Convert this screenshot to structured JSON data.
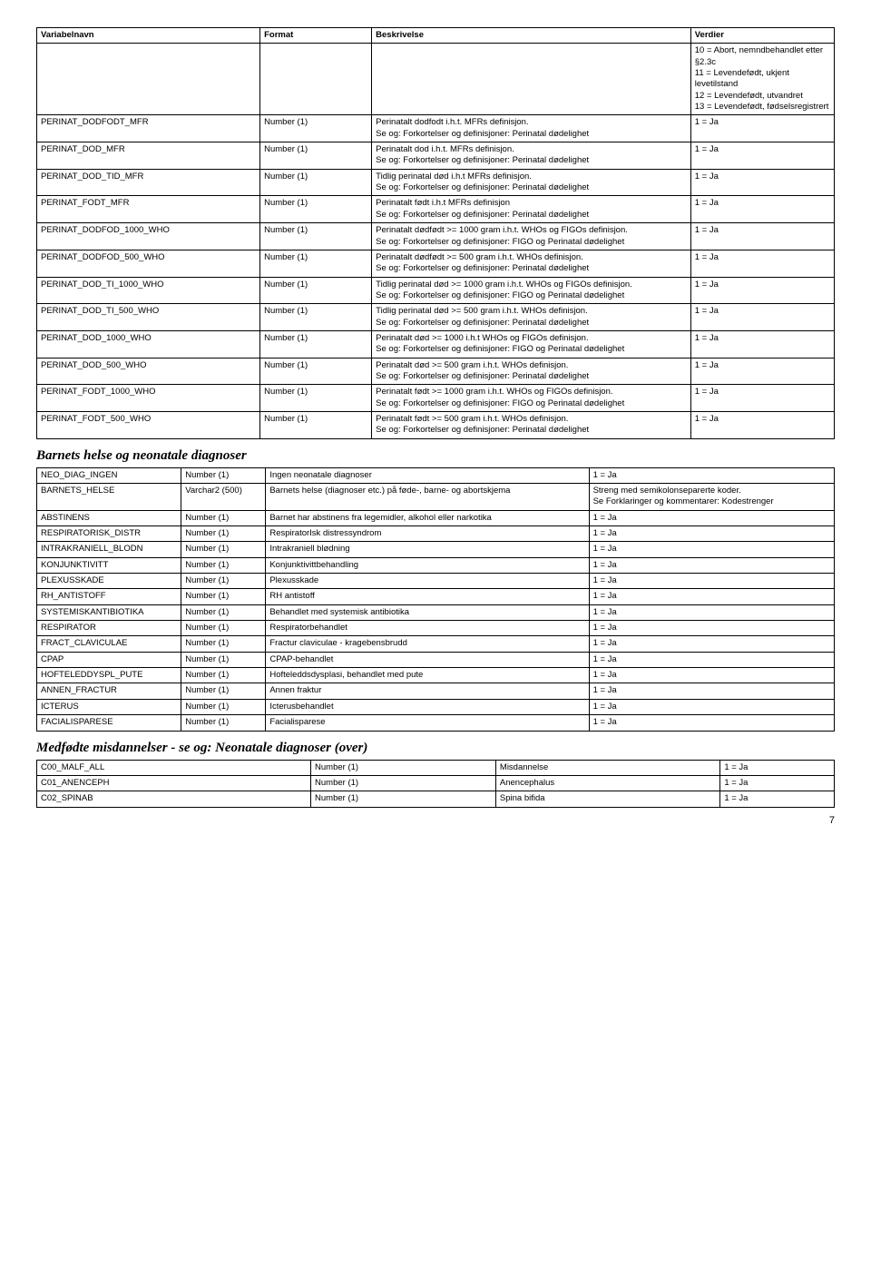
{
  "header": {
    "cols": [
      "Variabelnavn",
      "Format",
      "Beskrivelse",
      "Verdier"
    ]
  },
  "table1": {
    "rows": [
      [
        "",
        "",
        "",
        "10 = Abort, nemndbehandlet etter §2.3c\n11 = Levendefødt, ukjent levetilstand\n12 = Levendefødt, utvandret\n13 = Levendefødt, fødselsregistrert"
      ],
      [
        "PERINAT_DODFODT_MFR",
        "Number (1)",
        "Perinatalt dodfodt i.h.t. MFRs definisjon.\nSe og: Forkortelser og definisjoner: Perinatal dødelighet",
        "1 = Ja"
      ],
      [
        "PERINAT_DOD_MFR",
        "Number (1)",
        "Perinatalt dod i.h.t. MFRs definisjon.\nSe og: Forkortelser og definisjoner: Perinatal dødelighet",
        "1 = Ja"
      ],
      [
        "PERINAT_DOD_TID_MFR",
        "Number (1)",
        "Tidlig perinatal død i.h.t MFRs definisjon.\nSe og: Forkortelser og definisjoner: Perinatal dødelighet",
        "1 = Ja"
      ],
      [
        "PERINAT_FODT_MFR",
        "Number (1)",
        "Perinatalt født i.h.t MFRs definisjon\nSe og: Forkortelser og definisjoner: Perinatal dødelighet",
        "1 = Ja"
      ],
      [
        "PERINAT_DODFOD_1000_WHO",
        "Number (1)",
        "Perinatalt dødfødt >= 1000 gram i.h.t. WHOs og FIGOs definisjon.\nSe og: Forkortelser og definisjoner: FIGO og Perinatal dødelighet",
        "1 = Ja"
      ],
      [
        "PERINAT_DODFOD_500_WHO",
        "Number (1)",
        "Perinatalt dødfødt >= 500 gram i.h.t. WHOs definisjon.\nSe og: Forkortelser og definisjoner: Perinatal dødelighet",
        "1 = Ja"
      ],
      [
        "PERINAT_DOD_TI_1000_WHO",
        "Number (1)",
        "Tidlig perinatal død >= 1000 gram i.h.t. WHOs og FIGOs definisjon.\nSe og: Forkortelser og definisjoner: FIGO og Perinatal dødelighet",
        "1 = Ja"
      ],
      [
        "PERINAT_DOD_TI_500_WHO",
        "Number (1)",
        "Tidlig perinatal død >= 500 gram i.h.t. WHOs definisjon.\nSe og: Forkortelser og definisjoner: Perinatal dødelighet",
        "1 = Ja"
      ],
      [
        "PERINAT_DOD_1000_WHO",
        "Number (1)",
        "Perinatalt død >= 1000 i.h.t WHOs og FIGOs definisjon.\nSe og: Forkortelser og definisjoner: FIGO og Perinatal dødelighet",
        "1 = Ja"
      ],
      [
        "PERINAT_DOD_500_WHO",
        "Number (1)",
        "Perinatalt død >= 500 gram i.h.t. WHOs definisjon.\nSe og: Forkortelser og definisjoner: Perinatal dødelighet",
        "1 = Ja"
      ],
      [
        "PERINAT_FODT_1000_WHO",
        "Number (1)",
        "Perinatalt født >= 1000 gram i.h.t. WHOs og FIGOs definisjon.\nSe og: Forkortelser og definisjoner: FIGO og Perinatal dødelighet",
        "1 = Ja"
      ],
      [
        "PERINAT_FODT_500_WHO",
        "Number (1)",
        "Perinatalt født >= 500 gram i.h.t. WHOs definisjon.\nSe og: Forkortelser og definisjoner: Perinatal dødelighet",
        "1 = Ja"
      ]
    ]
  },
  "section2": {
    "title": "Barnets helse og neonatale diagnoser"
  },
  "table2": {
    "rows": [
      [
        "NEO_DIAG_INGEN",
        "Number (1)",
        "Ingen neonatale diagnoser",
        "1 = Ja"
      ],
      [
        "BARNETS_HELSE",
        "Varchar2 (500)",
        "Barnets helse (diagnoser etc.) på føde-, barne- og abortskjema",
        "Streng med semikolonseparerte koder.\nSe Forklaringer og kommentarer: Kodestrenger"
      ],
      [
        "ABSTINENS",
        "Number (1)",
        "Barnet har abstinens fra legemidler, alkohol eller narkotika",
        "1 = Ja"
      ],
      [
        "RESPIRATORISK_DISTR",
        "Number (1)",
        "RespiratorIsk distressyndrom",
        "1 = Ja"
      ],
      [
        "INTRAKRANIELL_BLODN",
        "Number (1)",
        "Intrakraniell blødning",
        "1 = Ja"
      ],
      [
        "KONJUNKTIVITT",
        "Number (1)",
        "Konjunktivittbehandling",
        "1 = Ja"
      ],
      [
        "PLEXUSSKADE",
        "Number (1)",
        "Plexusskade",
        "1 = Ja"
      ],
      [
        "RH_ANTISTOFF",
        "Number (1)",
        "RH antistoff",
        "1 = Ja"
      ],
      [
        "SYSTEMISKANTIBIOTIKA",
        "Number (1)",
        "Behandlet med systemisk antibiotika",
        "1 = Ja"
      ],
      [
        "RESPIRATOR",
        "Number (1)",
        "Respiratorbehandlet",
        "1 = Ja"
      ],
      [
        "FRACT_CLAVICULAE",
        "Number (1)",
        "Fractur claviculae - kragebensbrudd",
        "1 = Ja"
      ],
      [
        "CPAP",
        "Number (1)",
        "CPAP-behandlet",
        "1 = Ja"
      ],
      [
        "HOFTELEDDYSPL_PUTE",
        "Number (1)",
        "Hofteleddsdysplasi, behandlet med pute",
        "1 = Ja"
      ],
      [
        "ANNEN_FRACTUR",
        "Number (1)",
        "Annen fraktur",
        "1 = Ja"
      ],
      [
        "ICTERUS",
        "Number (1)",
        "Icterusbehandlet",
        "1 = Ja"
      ],
      [
        "FACIALISPARESE",
        "Number (1)",
        "Facialisparese",
        "1 = Ja"
      ]
    ]
  },
  "section3": {
    "title": "Medfødte misdannelser  -  se og:  Neonatale diagnoser (over)"
  },
  "table3": {
    "rows": [
      [
        "C00_MALF_ALL",
        "Number (1)",
        "Misdannelse",
        "1 = Ja"
      ],
      [
        "C01_ANENCEPH",
        "Number (1)",
        "Anencephalus",
        "1 = Ja"
      ],
      [
        "C02_SPINAB",
        "Number (1)",
        "Spina bifida",
        "1 = Ja"
      ]
    ]
  },
  "page": "7"
}
